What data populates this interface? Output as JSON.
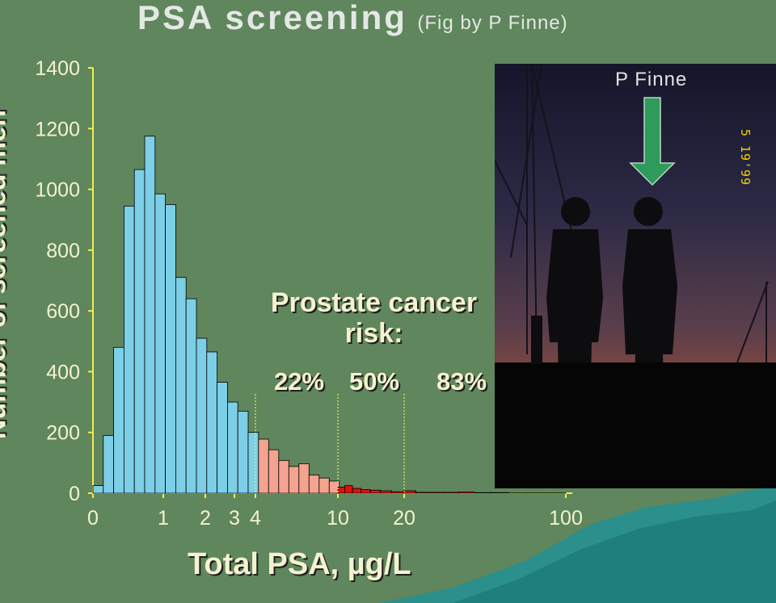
{
  "title": {
    "main": "PSA screening",
    "sub": "(Fig by P Finne)"
  },
  "photo": {
    "caption": "P Finne",
    "date_stamp": "5 19'99"
  },
  "risk_box": {
    "title": "Prostate cancer risk:",
    "values": [
      "22%",
      "50%",
      "83%"
    ]
  },
  "chart_data": {
    "type": "bar",
    "ylabel": "Number of screened men",
    "xlabel": "Total PSA, µg/L",
    "ylim": [
      0,
      1400
    ],
    "yticks": [
      0,
      200,
      400,
      600,
      800,
      1000,
      1200,
      1400
    ],
    "xticks": [
      "0",
      "1",
      "2",
      "3",
      "4",
      "10",
      "20",
      "100"
    ],
    "risk_thresholds": [
      "4",
      "10",
      "20"
    ],
    "series": [
      {
        "color": "#7ccfe6",
        "values": [
          25,
          190,
          480,
          945,
          1065,
          1175,
          985,
          950,
          710,
          640,
          510,
          465,
          365,
          300,
          270,
          200
        ]
      },
      {
        "color": "#f4a390",
        "values": [
          178,
          143,
          108,
          88,
          97,
          60,
          50,
          40
        ]
      },
      {
        "color": "#e01010",
        "values": [
          20,
          25,
          16,
          12,
          10,
          8,
          5,
          8,
          3,
          3,
          3,
          4,
          2,
          2,
          1,
          1,
          1
        ]
      }
    ],
    "colors": {
      "background": "#5f865c",
      "axis": "#f0ed50"
    }
  }
}
